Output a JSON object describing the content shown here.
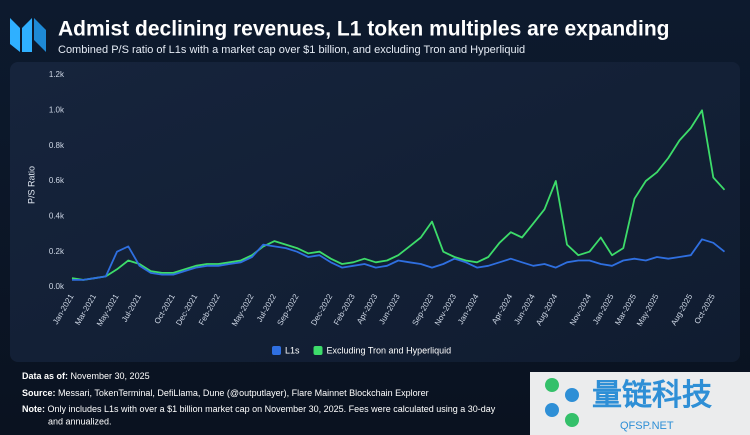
{
  "chart_data": {
    "type": "line",
    "title": "Admist declining revenues, L1 token multiples are expanding",
    "subtitle": "Combined P/S ratio of L1s with a market cap over $1 billion, and excluding Tron and Hyperliquid",
    "y_label": "P/S Ratio",
    "categories": [
      "Jan-2021",
      null,
      "Mar-2021",
      null,
      "May-2021",
      null,
      "Jul-2021",
      null,
      null,
      "Oct-2021",
      null,
      "Dec-2021",
      null,
      "Feb-2022",
      null,
      null,
      "May-2022",
      null,
      "Jul-2022",
      null,
      "Sep-2022",
      null,
      null,
      "Dec-2022",
      null,
      "Feb-2023",
      null,
      "Apr-2023",
      null,
      "Jun-2023",
      null,
      null,
      "Sep-2023",
      null,
      "Nov-2023",
      null,
      "Jan-2024",
      null,
      null,
      "Apr-2024",
      null,
      "Jun-2024",
      null,
      "Aug-2024",
      null,
      null,
      "Nov-2024",
      null,
      "Jan-2025",
      null,
      "Mar-2025",
      null,
      "May-2025",
      null,
      null,
      "Aug-2025",
      null,
      "Oct-2025",
      null
    ],
    "series": [
      {
        "name": "Excluding Tron and Hyperliquid",
        "color": "#3ddc6a",
        "values": [
          50,
          40,
          50,
          60,
          100,
          150,
          130,
          90,
          80,
          80,
          100,
          120,
          130,
          130,
          140,
          150,
          180,
          230,
          260,
          240,
          220,
          190,
          200,
          160,
          130,
          140,
          160,
          140,
          150,
          180,
          230,
          280,
          370,
          200,
          170,
          150,
          140,
          170,
          250,
          310,
          280,
          360,
          440,
          600,
          240,
          180,
          200,
          280,
          180,
          220,
          500,
          600,
          650,
          730,
          830,
          900,
          1000,
          620,
          550
        ]
      },
      {
        "name": "L1s",
        "color": "#2f6fe0",
        "values": [
          40,
          40,
          50,
          60,
          200,
          230,
          120,
          80,
          70,
          70,
          90,
          110,
          120,
          120,
          130,
          140,
          170,
          240,
          230,
          220,
          200,
          170,
          180,
          140,
          110,
          120,
          130,
          110,
          120,
          150,
          140,
          130,
          110,
          130,
          160,
          140,
          110,
          120,
          140,
          160,
          140,
          120,
          130,
          110,
          140,
          150,
          150,
          130,
          120,
          150,
          160,
          150,
          170,
          160,
          170,
          180,
          270,
          250,
          200
        ]
      }
    ],
    "legend_order": [
      1,
      0
    ],
    "ylim": [
      0,
      1200
    ],
    "yticks": [
      {
        "value": 0,
        "label": "0.0k"
      },
      {
        "value": 200,
        "label": "0.2k"
      },
      {
        "value": 400,
        "label": "0.4k"
      },
      {
        "value": 600,
        "label": "0.6k"
      },
      {
        "value": 800,
        "label": "0.8k"
      },
      {
        "value": 1000,
        "label": "1.0k"
      },
      {
        "value": 1200,
        "label": "1.2k"
      }
    ],
    "grid": false
  },
  "notes": {
    "data_as_of": {
      "label": "Data as of:",
      "text": "November 30, 2025"
    },
    "source": {
      "label": "Source:",
      "text": "Messari, TokenTerminal, DefiLlama, Dune (@outputlayer), Flare Mainnet Blockchain Explorer"
    },
    "note": {
      "label": "Note:",
      "text": "Only includes L1s with over a $1 billion market cap on November 30, 2025. Fees were calculated using a 30-day",
      "text2": "and annualized."
    }
  },
  "watermark": {
    "title": "量链科技",
    "site": "QFSP.NET"
  }
}
